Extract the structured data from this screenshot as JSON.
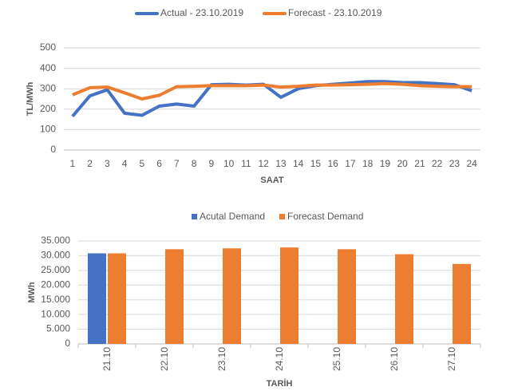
{
  "chart_data": [
    {
      "type": "line",
      "x_label": "SAAT",
      "y_label": "TL/MWh",
      "categories": [
        "1",
        "2",
        "3",
        "4",
        "5",
        "6",
        "7",
        "8",
        "9",
        "10",
        "11",
        "12",
        "13",
        "14",
        "15",
        "16",
        "17",
        "18",
        "19",
        "20",
        "21",
        "22",
        "23",
        "24"
      ],
      "series": [
        {
          "name": "Actual - 23.10.2019",
          "color": "#4472c4",
          "values": [
            165,
            265,
            295,
            180,
            170,
            215,
            225,
            215,
            320,
            322,
            318,
            322,
            258,
            300,
            315,
            322,
            328,
            335,
            335,
            330,
            330,
            325,
            320,
            290
          ]
        },
        {
          "name": "Forecast - 23.10.2019",
          "color": "#ed7d31",
          "values": [
            270,
            305,
            308,
            280,
            250,
            268,
            310,
            312,
            315,
            315,
            315,
            318,
            308,
            312,
            318,
            318,
            320,
            322,
            325,
            322,
            315,
            312,
            310,
            310
          ]
        }
      ],
      "ylim": [
        0,
        500
      ],
      "yticks": [
        0,
        100,
        200,
        300,
        400,
        500
      ],
      "grid": true,
      "legend": "top"
    },
    {
      "type": "bar",
      "x_label": "TARİH",
      "y_label": "MWh",
      "categories": [
        "21.10",
        "22.10",
        "23.10",
        "24.10",
        "25.10",
        "26.10",
        "27.10"
      ],
      "series": [
        {
          "name": "Acutal Demand",
          "color": "#4472c4",
          "values": [
            30800,
            null,
            null,
            null,
            null,
            null,
            null
          ]
        },
        {
          "name": "Forecast Demand",
          "color": "#ed7d31",
          "values": [
            30800,
            32200,
            32500,
            32800,
            32200,
            30500,
            27200
          ]
        }
      ],
      "ylim": [
        0,
        35000
      ],
      "yticks": [
        0,
        {
          "value": 5000,
          "label": "5.000"
        },
        {
          "value": 10000,
          "label": "10.000"
        },
        {
          "value": 15000,
          "label": "15.000"
        },
        {
          "value": 20000,
          "label": "20.000"
        },
        {
          "value": 25000,
          "label": "25.000"
        },
        {
          "value": 30000,
          "label": "30.000"
        },
        {
          "value": 35000,
          "label": "35.000"
        }
      ],
      "grid": true,
      "legend": "top"
    }
  ]
}
